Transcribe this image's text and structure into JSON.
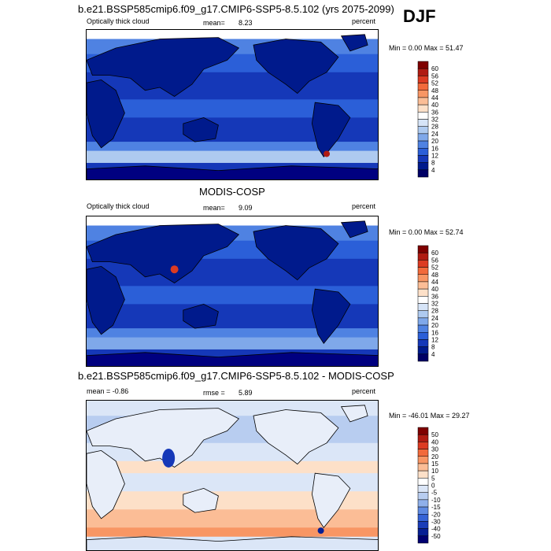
{
  "season": "DJF",
  "panels": [
    {
      "title": "b.e21.BSSP585cmip6.f09_g17.CMIP6-SSP5-8.5.102 (yrs 2075-2099)",
      "left_label": "Optically thick cloud",
      "center_label": "mean=",
      "center_value": "8.23",
      "right_label": "percent",
      "minmax": "Min =   0.00 Max =  51.47"
    },
    {
      "title": "MODIS-COSP",
      "left_label": "Optically thick cloud",
      "center_label": "mean=",
      "center_value": "9.09",
      "right_label": "percent",
      "minmax": "Min =   0.00 Max =  52.74"
    },
    {
      "title": "b.e21.BSSP585cmip6.f09_g17.CMIP6-SSP5-8.5.102 - MODIS-COSP",
      "left_label": "mean =  -0.86",
      "center_label": "rmse =",
      "center_value": "5.89",
      "right_label": "percent",
      "minmax": "Min = -46.01 Max =  29.27"
    }
  ],
  "chart_data": [
    {
      "type": "heatmap",
      "title": "b.e21.BSSP585cmip6.f09_g17.CMIP6-SSP5-8.5.102 (yrs 2075-2099)",
      "colorbar": {
        "ticks": [
          "60",
          "56",
          "52",
          "48",
          "44",
          "40",
          "36",
          "32",
          "28",
          "24",
          "20",
          "16",
          "12",
          "8",
          "4"
        ],
        "colors": [
          "#7f0000",
          "#b01b12",
          "#dc3b22",
          "#f26a3b",
          "#f89664",
          "#fbbd96",
          "#fde0c8",
          "#ffffff",
          "#d6e4f7",
          "#aecaf0",
          "#7fa8ea",
          "#4f82e2",
          "#2b5fd8",
          "#1538b8",
          "#001a8c",
          "#000066"
        ]
      },
      "min": 0.0,
      "max": 51.47,
      "mean": 8.23,
      "units": "percent"
    },
    {
      "type": "heatmap",
      "title": "MODIS-COSP",
      "colorbar": {
        "ticks": [
          "60",
          "56",
          "52",
          "48",
          "44",
          "40",
          "36",
          "32",
          "28",
          "24",
          "20",
          "16",
          "12",
          "8",
          "4"
        ],
        "colors": [
          "#7f0000",
          "#b01b12",
          "#dc3b22",
          "#f26a3b",
          "#f89664",
          "#fbbd96",
          "#fde0c8",
          "#ffffff",
          "#d6e4f7",
          "#aecaf0",
          "#7fa8ea",
          "#4f82e2",
          "#2b5fd8",
          "#1538b8",
          "#001a8c",
          "#000066"
        ]
      },
      "min": 0.0,
      "max": 52.74,
      "mean": 9.09,
      "units": "percent"
    },
    {
      "type": "heatmap",
      "title": "b.e21.BSSP585cmip6.f09_g17.CMIP6-SSP5-8.5.102 - MODIS-COSP",
      "colorbar": {
        "ticks": [
          "50",
          "40",
          "30",
          "20",
          "15",
          "10",
          "5",
          "0",
          "-5",
          "-10",
          "-15",
          "-20",
          "-30",
          "-40",
          "-50"
        ],
        "colors": [
          "#7f0000",
          "#b01b12",
          "#dc3b22",
          "#f26a3b",
          "#f89664",
          "#fbbd96",
          "#fde0c8",
          "#ffffff",
          "#dbe6f7",
          "#b8cdf0",
          "#8fb0ea",
          "#5f8ae2",
          "#3563d6",
          "#1a3db8",
          "#061f94",
          "#000070"
        ]
      },
      "min": -46.01,
      "max": 29.27,
      "mean": -0.86,
      "rmse": 5.89,
      "units": "percent"
    }
  ]
}
